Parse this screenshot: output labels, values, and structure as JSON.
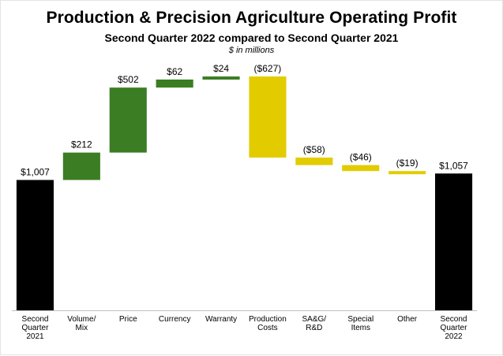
{
  "chart_title": "Production & Precision Agriculture Operating Profit",
  "chart_subtitle": "Second Quarter 2022 compared to Second Quarter 2021",
  "unit_note": "$ in millions",
  "chart_data": {
    "type": "bar",
    "subtype": "waterfall",
    "title": "Production & Precision Agriculture Operating Profit",
    "subtitle": "Second Quarter 2022 compared to Second Quarter 2021",
    "unit": "$ in millions",
    "grid": false,
    "legend": "none",
    "categories": [
      "Second Quarter 2021",
      "Volume/ Mix",
      "Price",
      "Currency",
      "Warranty",
      "Production Costs",
      "SA&G/ R&D",
      "Special Items",
      "Other",
      "Second Quarter 2022"
    ],
    "category_lines": [
      [
        "Second",
        "Quarter",
        "2021"
      ],
      [
        "Volume/",
        "Mix"
      ],
      [
        "Price"
      ],
      [
        "Currency"
      ],
      [
        "Warranty"
      ],
      [
        "Production",
        "Costs"
      ],
      [
        "SA&G/",
        "R&D"
      ],
      [
        "Special",
        "Items"
      ],
      [
        "Other"
      ],
      [
        "Second",
        "Quarter",
        "2022"
      ]
    ],
    "values": [
      1007,
      212,
      502,
      62,
      24,
      -627,
      -58,
      -46,
      -19,
      1057
    ],
    "value_labels": [
      "$1,007",
      "$212",
      "$502",
      "$62",
      "$24",
      "($627)",
      "($58)",
      "($46)",
      "($19)",
      "$1,057"
    ],
    "bar_kinds": [
      "total",
      "delta",
      "delta",
      "delta",
      "delta",
      "delta",
      "delta",
      "delta",
      "delta",
      "total"
    ],
    "ylim": [
      0,
      1850
    ],
    "colors": {
      "total": "#000000",
      "increase": "#3a7d22",
      "decrease": "#e2cc00",
      "axis": "#bfbfbf"
    }
  }
}
